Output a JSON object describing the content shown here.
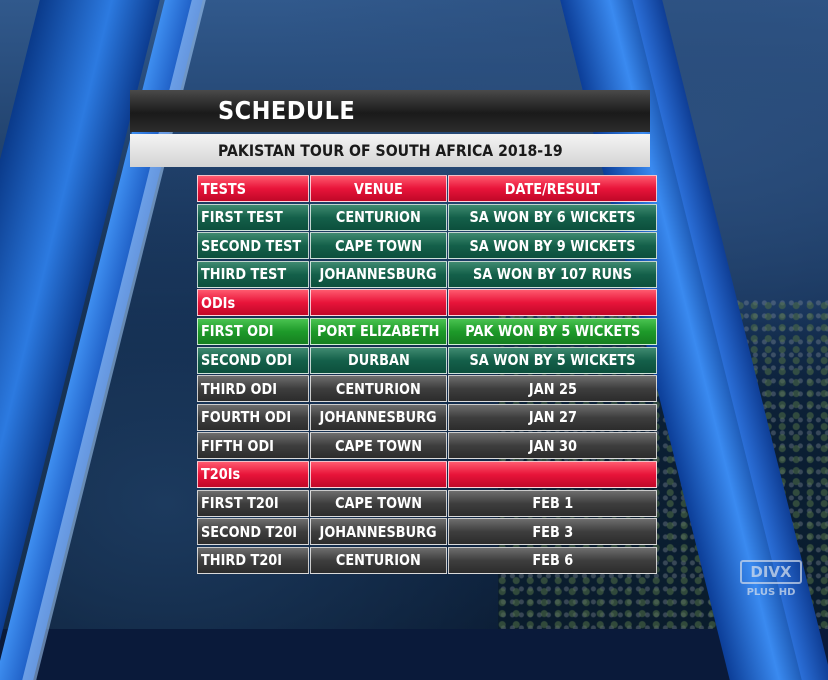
{
  "header": {
    "title": "SCHEDULE",
    "subtitle": "PAKISTAN TOUR OF SOUTH AFRICA 2018-19"
  },
  "table": {
    "columns": [
      "TESTS",
      "VENUE",
      "DATE/RESULT"
    ],
    "rows": [
      {
        "style": "teal",
        "match": "FIRST TEST",
        "venue": "CENTURION",
        "result": "SA WON BY 6 WICKETS"
      },
      {
        "style": "teal",
        "match": "SECOND TEST",
        "venue": "CAPE TOWN",
        "result": "SA WON BY 9 WICKETS"
      },
      {
        "style": "teal",
        "match": "THIRD TEST",
        "venue": "JOHANNESBURG",
        "result": "SA WON BY 107 RUNS"
      },
      {
        "style": "red",
        "match": "ODIs",
        "venue": "",
        "result": ""
      },
      {
        "style": "green",
        "match": "FIRST ODI",
        "venue": "PORT ELIZABETH",
        "result": "PAK WON BY 5 WICKETS"
      },
      {
        "style": "teal",
        "match": "SECOND ODI",
        "venue": "DURBAN",
        "result": "SA WON BY 5 WICKETS"
      },
      {
        "style": "dark",
        "match": "THIRD ODI",
        "venue": "CENTURION",
        "result": "JAN 25"
      },
      {
        "style": "dark",
        "match": "FOURTH ODI",
        "venue": "JOHANNESBURG",
        "result": "JAN 27"
      },
      {
        "style": "dark",
        "match": "FIFTH ODI",
        "venue": "CAPE TOWN",
        "result": "JAN 30"
      },
      {
        "style": "red",
        "match": "T20Is",
        "venue": "",
        "result": ""
      },
      {
        "style": "dark",
        "match": "FIRST T20I",
        "venue": "CAPE TOWN",
        "result": "FEB 1"
      },
      {
        "style": "dark",
        "match": "SECOND T20I",
        "venue": "JOHANNESBURG",
        "result": "FEB 3"
      },
      {
        "style": "dark",
        "match": "THIRD T20I",
        "venue": "CENTURION",
        "result": "FEB 6"
      }
    ]
  },
  "logo": {
    "name": "DIVX",
    "tag": "PLUS HD"
  },
  "colors": {
    "section_red": "#e8143a",
    "result_teal": "#14604a",
    "highlight_green": "#1e9a2a",
    "upcoming_dark": "#3e3e3e"
  }
}
